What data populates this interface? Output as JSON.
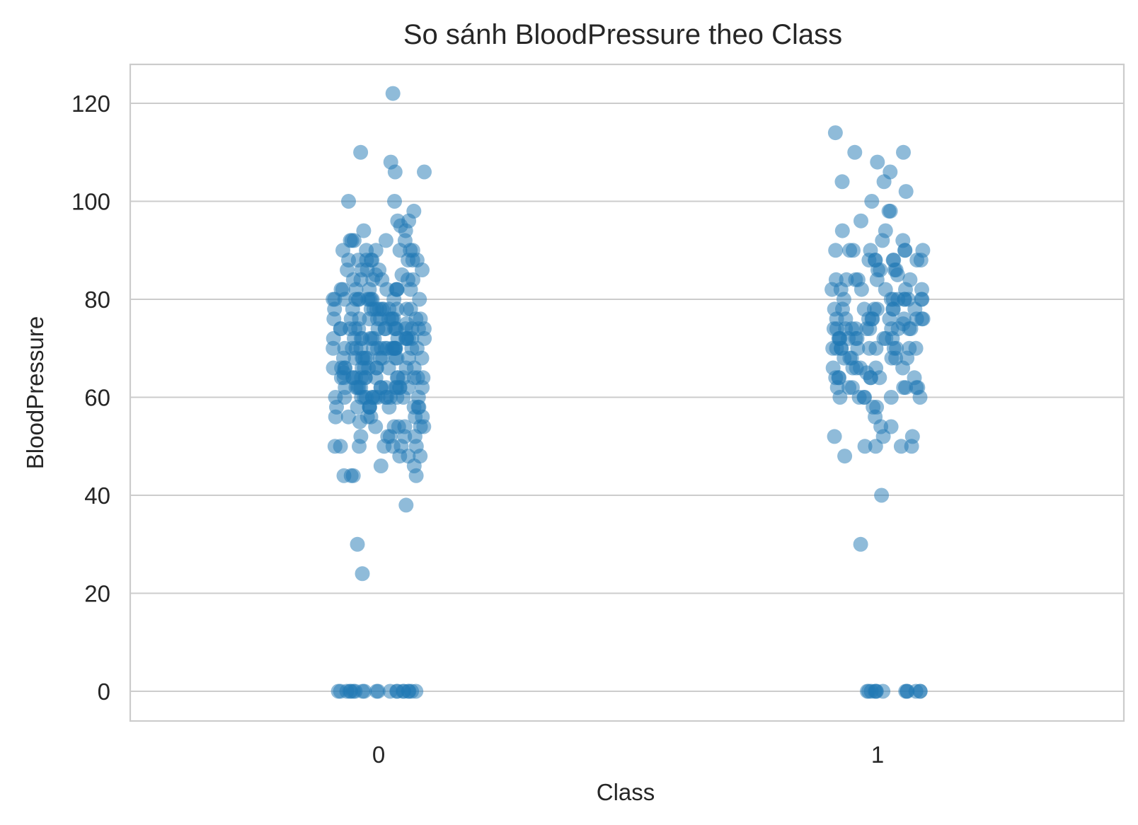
{
  "chart_data": {
    "type": "scatter",
    "title": "So sánh BloodPressure theo Class",
    "xlabel": "Class",
    "ylabel": "BloodPressure",
    "categories": [
      "0",
      "1"
    ],
    "y_ticks": [
      0,
      20,
      40,
      60,
      80,
      100,
      120
    ],
    "y_tick_labels": [
      "0",
      "20",
      "40",
      "60",
      "80",
      "100",
      "120"
    ],
    "ylim": [
      -6,
      128
    ],
    "grid": "horizontal",
    "point_color": "#1f77b4",
    "point_opacity": 0.5,
    "series": [
      {
        "category": "0",
        "values": [
          122,
          110,
          108,
          106,
          106,
          100,
          100,
          98,
          96,
          96,
          95,
          94,
          94,
          92,
          92,
          92,
          92,
          92,
          90,
          90,
          90,
          90,
          90,
          90,
          88,
          88,
          88,
          88,
          88,
          88,
          88,
          88,
          86,
          86,
          86,
          86,
          86,
          85,
          85,
          84,
          84,
          84,
          84,
          84,
          84,
          82,
          82,
          82,
          82,
          82,
          82,
          82,
          82,
          82,
          80,
          80,
          80,
          80,
          80,
          80,
          80,
          80,
          80,
          80,
          80,
          80,
          78,
          78,
          78,
          78,
          78,
          78,
          78,
          78,
          78,
          78,
          78,
          78,
          76,
          76,
          76,
          76,
          76,
          76,
          76,
          76,
          76,
          76,
          76,
          76,
          75,
          74,
          74,
          74,
          74,
          74,
          74,
          74,
          74,
          74,
          74,
          74,
          74,
          74,
          74,
          74,
          72,
          72,
          72,
          72,
          72,
          72,
          72,
          72,
          72,
          72,
          72,
          72,
          72,
          72,
          70,
          70,
          70,
          70,
          70,
          70,
          70,
          70,
          70,
          70,
          70,
          70,
          70,
          70,
          70,
          70,
          70,
          70,
          68,
          68,
          68,
          68,
          68,
          68,
          68,
          68,
          68,
          68,
          68,
          68,
          66,
          66,
          66,
          66,
          66,
          66,
          66,
          66,
          66,
          66,
          66,
          66,
          65,
          64,
          64,
          64,
          64,
          64,
          64,
          64,
          64,
          64,
          64,
          64,
          64,
          64,
          64,
          64,
          62,
          62,
          62,
          62,
          62,
          62,
          62,
          62,
          62,
          62,
          62,
          62,
          62,
          62,
          60,
          60,
          60,
          60,
          60,
          60,
          60,
          60,
          60,
          60,
          60,
          60,
          60,
          60,
          60,
          58,
          58,
          58,
          58,
          58,
          58,
          58,
          58,
          58,
          56,
          56,
          56,
          56,
          56,
          56,
          55,
          54,
          54,
          54,
          54,
          54,
          54,
          52,
          52,
          52,
          52,
          52,
          50,
          50,
          50,
          50,
          50,
          50,
          50,
          48,
          48,
          48,
          46,
          46,
          44,
          44,
          44,
          44,
          38,
          30,
          24,
          0,
          0,
          0,
          0,
          0,
          0,
          0,
          0,
          0,
          0,
          0,
          0,
          0,
          0,
          0,
          0,
          0,
          0,
          0,
          0
        ]
      },
      {
        "category": "1",
        "values": [
          114,
          110,
          110,
          108,
          106,
          104,
          104,
          102,
          100,
          98,
          98,
          96,
          94,
          94,
          92,
          92,
          90,
          90,
          90,
          90,
          90,
          90,
          90,
          88,
          88,
          88,
          88,
          88,
          88,
          88,
          86,
          86,
          86,
          86,
          85,
          84,
          84,
          84,
          84,
          84,
          84,
          82,
          82,
          82,
          82,
          82,
          82,
          80,
          80,
          80,
          80,
          80,
          80,
          80,
          80,
          80,
          78,
          78,
          78,
          78,
          78,
          78,
          78,
          78,
          76,
          76,
          76,
          76,
          76,
          76,
          76,
          76,
          76,
          76,
          75,
          74,
          74,
          74,
          74,
          74,
          74,
          74,
          74,
          74,
          74,
          74,
          72,
          72,
          72,
          72,
          72,
          72,
          72,
          72,
          72,
          70,
          70,
          70,
          70,
          70,
          70,
          70,
          70,
          70,
          70,
          70,
          68,
          68,
          68,
          68,
          68,
          68,
          66,
          66,
          66,
          66,
          66,
          66,
          65,
          64,
          64,
          64,
          64,
          64,
          64,
          64,
          62,
          62,
          62,
          62,
          62,
          62,
          62,
          60,
          60,
          60,
          60,
          60,
          60,
          58,
          58,
          56,
          54,
          54,
          52,
          52,
          52,
          50,
          50,
          50,
          50,
          48,
          40,
          30,
          0,
          0,
          0,
          0,
          0,
          0,
          0,
          0,
          0,
          0,
          0,
          0,
          0
        ]
      }
    ]
  }
}
